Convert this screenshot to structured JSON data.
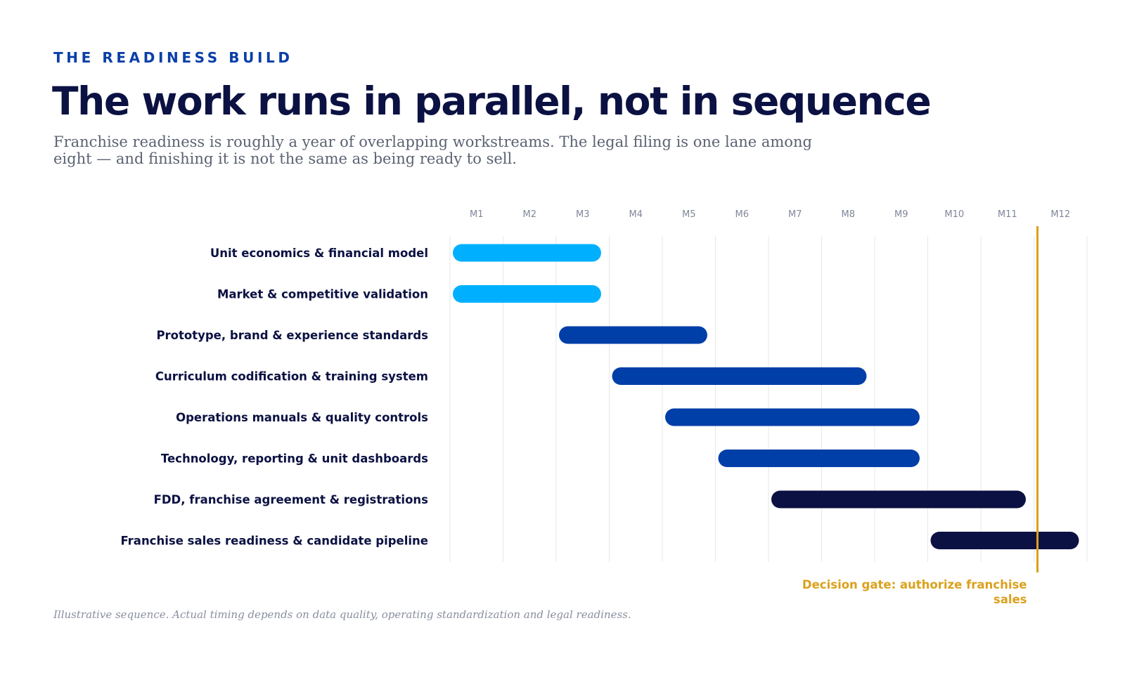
{
  "header": {
    "eyebrow": "THE READINESS BUILD",
    "title": "The work runs in parallel, not in sequence",
    "subtitle": "Franchise readiness is roughly a year of overlapping workstreams. The legal filing is one lane among eight — and finishing it is not the same as being ready to sell."
  },
  "footnote": "Illustrative sequence. Actual timing depends on data quality, operating standardization and legal readiness.",
  "colors": {
    "light": "#00b0ff",
    "mid": "#003ea8",
    "dark": "#0b1142",
    "gate": "#dba11c",
    "grid": "#e6e7eb"
  },
  "chart_data": {
    "type": "gantt",
    "x_ticks": [
      "M1",
      "M2",
      "M3",
      "M4",
      "M5",
      "M6",
      "M7",
      "M8",
      "M9",
      "M10",
      "M11",
      "M12"
    ],
    "xlim": [
      0,
      12
    ],
    "grid": true,
    "lanes": [
      {
        "label": "Unit economics & financial model",
        "start": 0,
        "end": 2.9,
        "color": "light"
      },
      {
        "label": "Market & competitive validation",
        "start": 0,
        "end": 2.9,
        "color": "light"
      },
      {
        "label": "Prototype, brand & experience standards",
        "start": 2.0,
        "end": 4.9,
        "color": "mid"
      },
      {
        "label": "Curriculum codification & training system",
        "start": 3.0,
        "end": 7.9,
        "color": "mid"
      },
      {
        "label": "Operations manuals & quality controls",
        "start": 4.0,
        "end": 8.9,
        "color": "mid"
      },
      {
        "label": "Technology, reporting & unit dashboards",
        "start": 5.0,
        "end": 8.9,
        "color": "mid"
      },
      {
        "label": "FDD, franchise agreement & registrations",
        "start": 6.0,
        "end": 10.9,
        "color": "dark"
      },
      {
        "label": "Franchise sales readiness & candidate pipeline",
        "start": 9.0,
        "end": 11.9,
        "color": "dark"
      }
    ],
    "decision_gate": {
      "at": 11,
      "label_lines": [
        "Decision gate: authorize franchise",
        "sales"
      ]
    }
  }
}
